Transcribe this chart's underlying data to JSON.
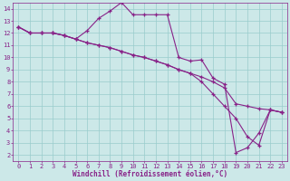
{
  "xlabel": "Windchill (Refroidissement éolien,°C)",
  "bg_color": "#cce8e8",
  "line_color": "#882288",
  "xlim_min": -0.5,
  "xlim_max": 23.5,
  "ylim_min": 1.5,
  "ylim_max": 14.5,
  "xticks": [
    0,
    1,
    2,
    3,
    4,
    5,
    6,
    7,
    8,
    9,
    10,
    11,
    12,
    13,
    14,
    15,
    16,
    17,
    18,
    19,
    20,
    21,
    22,
    23
  ],
  "yticks": [
    2,
    3,
    4,
    5,
    6,
    7,
    8,
    9,
    10,
    11,
    12,
    13,
    14
  ],
  "line1_x": [
    0,
    1,
    2,
    3,
    4,
    5,
    6,
    7,
    8,
    9,
    10,
    11,
    12,
    13,
    14,
    15,
    16,
    17,
    18,
    19,
    20,
    21,
    22,
    23
  ],
  "line1_y": [
    12.5,
    12.0,
    12.0,
    12.0,
    11.8,
    11.5,
    12.2,
    13.2,
    13.8,
    14.5,
    13.5,
    13.5,
    13.5,
    13.5,
    10.0,
    9.7,
    9.8,
    8.3,
    7.8,
    2.2,
    2.6,
    3.8,
    5.7,
    5.5
  ],
  "line2_x": [
    0,
    1,
    2,
    3,
    4,
    5,
    6,
    7,
    8,
    9,
    10,
    11,
    12,
    13,
    14,
    15,
    16,
    17,
    18,
    19,
    20,
    21,
    22,
    23
  ],
  "line2_y": [
    12.5,
    12.0,
    12.0,
    12.0,
    11.8,
    11.5,
    11.2,
    11.0,
    10.8,
    10.5,
    10.2,
    10.0,
    9.7,
    9.4,
    9.0,
    8.7,
    8.4,
    8.0,
    7.5,
    6.2,
    6.0,
    5.8,
    5.7,
    5.5
  ],
  "line3_x": [
    0,
    1,
    2,
    3,
    4,
    5,
    6,
    7,
    8,
    9,
    10,
    11,
    12,
    13,
    14,
    15,
    16,
    17,
    18,
    19,
    20,
    21,
    22,
    23
  ],
  "line3_y": [
    12.5,
    12.0,
    12.0,
    12.0,
    11.8,
    11.5,
    11.2,
    11.0,
    10.8,
    10.5,
    10.2,
    10.0,
    9.7,
    9.4,
    9.0,
    8.7,
    8.0,
    7.0,
    6.0,
    5.0,
    3.5,
    2.8,
    5.7,
    5.5
  ],
  "marker": "+",
  "markersize": 3,
  "linewidth": 0.8,
  "grid_color": "#99cccc",
  "label_fontsize": 5.5,
  "tick_fontsize": 5.0
}
